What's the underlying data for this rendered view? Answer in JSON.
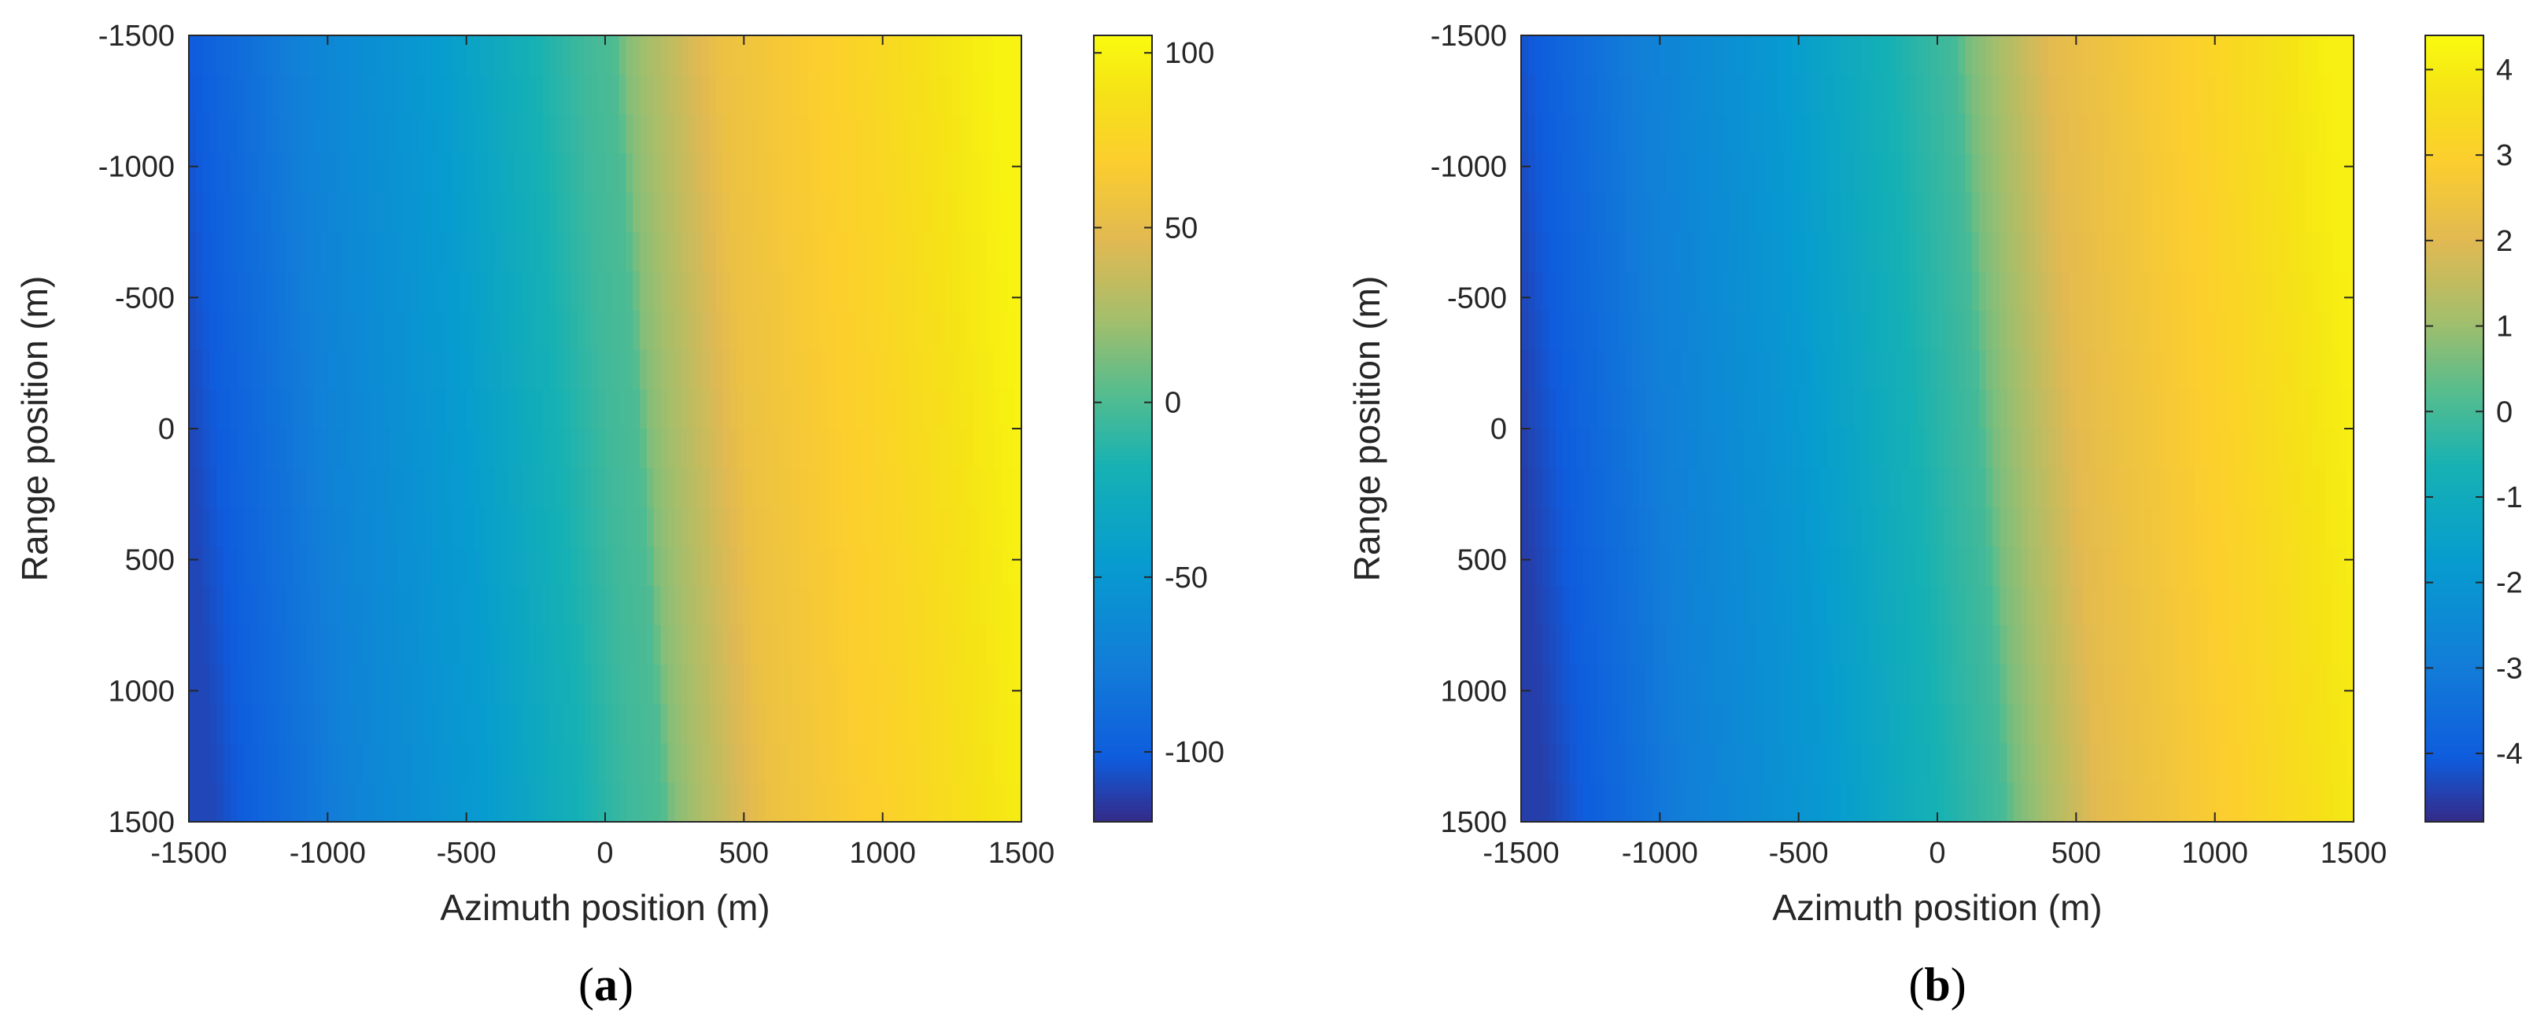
{
  "chart_data": [
    {
      "type": "heatmap",
      "panel_label": "a",
      "xlabel": "Azimuth position (m)",
      "ylabel": "Range position (m)",
      "xlim": [
        -1500,
        1500
      ],
      "ylim": [
        -1500,
        1500
      ],
      "y_reversed": true,
      "x_ticks": [
        -1500,
        -1000,
        -500,
        0,
        500,
        1000,
        1500
      ],
      "y_ticks": [
        -1500,
        -1000,
        -500,
        0,
        500,
        1000,
        1500
      ],
      "colorbar": {
        "min": -120,
        "max": 105,
        "ticks": [
          100,
          50,
          0,
          -50,
          -100
        ]
      },
      "colormap": "parula",
      "field": {
        "description_values": "values vs azimuth x (m), slight tilt with range y",
        "x": [
          -1500,
          -1000,
          -500,
          0,
          120,
          160,
          500,
          1000,
          1500
        ],
        "value": [
          -110,
          -70,
          -45,
          -5,
          0,
          15,
          55,
          75,
          100
        ],
        "tilt_x_per_range": 0.06
      }
    },
    {
      "type": "heatmap",
      "panel_label": "b",
      "xlabel": "Azimuth position (m)",
      "ylabel": "Range position (m)",
      "xlim": [
        -1500,
        1500
      ],
      "ylim": [
        -1500,
        1500
      ],
      "y_reversed": true,
      "x_ticks": [
        -1500,
        -1000,
        -500,
        0,
        500,
        1000,
        1500
      ],
      "y_ticks": [
        -1500,
        -1000,
        -500,
        0,
        500,
        1000,
        1500
      ],
      "colorbar": {
        "min": -4.8,
        "max": 4.4,
        "ticks": [
          4,
          3,
          2,
          1,
          0,
          -1,
          -2,
          -3,
          -4
        ]
      },
      "colormap": "parula",
      "field": {
        "x": [
          -1500,
          -1000,
          -500,
          0,
          150,
          200,
          500,
          1000,
          1500
        ],
        "value": [
          -4.5,
          -2.9,
          -1.9,
          -0.4,
          0,
          0.6,
          2.1,
          3.0,
          4.1
        ],
        "tilt_x_per_range": 0.06
      }
    }
  ]
}
